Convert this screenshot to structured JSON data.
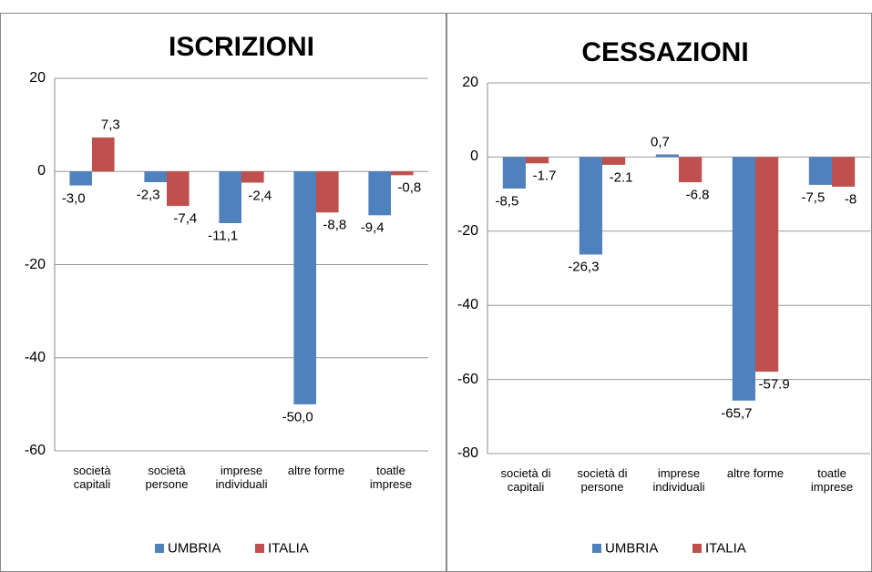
{
  "chart_data": [
    {
      "type": "bar",
      "title": "ISCRIZIONI",
      "categories": [
        "società\ncapitali",
        "società\npersone",
        "imprese\nindividuali",
        "altre forme",
        "toatle\nimprese"
      ],
      "series": [
        {
          "name": "UMBRIA",
          "color": "#4f81bd",
          "values": [
            -3.0,
            -2.3,
            -11.1,
            -50.0,
            -9.4
          ],
          "value_labels": [
            "-3,0",
            "-2,3",
            "-11,1",
            "-50,0",
            "-9,4"
          ]
        },
        {
          "name": "ITALIA",
          "color": "#c0504d",
          "values": [
            7.3,
            -7.4,
            -2.4,
            -8.8,
            -0.8
          ],
          "value_labels": [
            "7,3",
            "-7,4",
            "-2,4",
            "-8,8",
            "-0,8"
          ]
        }
      ],
      "ylim": [
        -60,
        20
      ],
      "yticks": [
        -60,
        -40,
        -20,
        0,
        20
      ],
      "grid": true
    },
    {
      "type": "bar",
      "title": "CESSAZIONI",
      "categories": [
        "società di\ncapitali",
        "società di\npersone",
        "imprese\nindividuali",
        "altre forme",
        "toatle\nimprese"
      ],
      "series": [
        {
          "name": "UMBRIA",
          "color": "#4f81bd",
          "values": [
            -8.5,
            -26.3,
            0.7,
            -65.7,
            -7.5
          ],
          "value_labels": [
            "-8,5",
            "-26,3",
            "0,7",
            "-65,7",
            "-7,5"
          ]
        },
        {
          "name": "ITALIA",
          "color": "#c0504d",
          "values": [
            -1.7,
            -2.1,
            -6.8,
            -57.9,
            -8
          ]
        }
      ],
      "ylim": [
        -80,
        20
      ],
      "yticks": [
        -80,
        -60,
        -40,
        -20,
        0,
        20
      ],
      "grid": true
    }
  ]
}
